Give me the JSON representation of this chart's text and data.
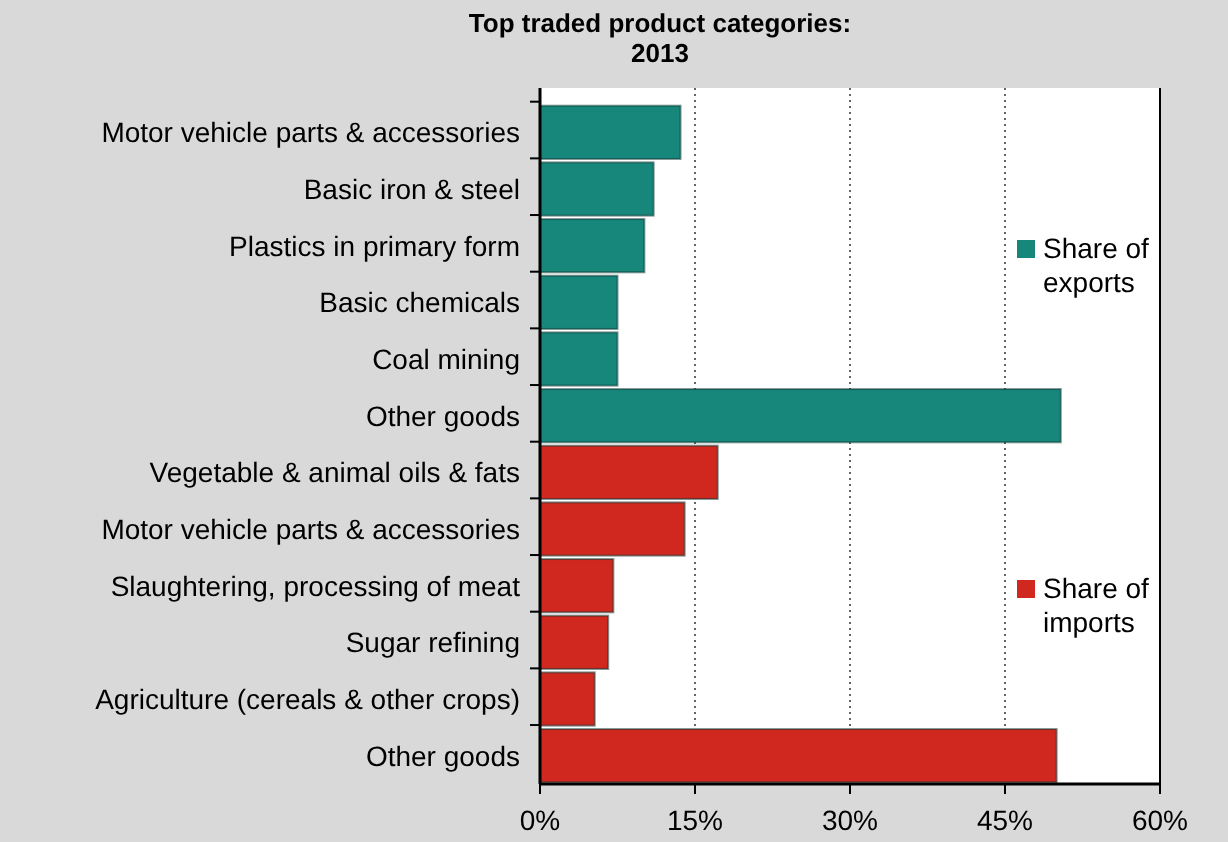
{
  "chart_data": {
    "type": "bar",
    "orientation": "horizontal",
    "title": "Top traded product categories: 2013",
    "categories": [
      "Motor vehicle parts & accessories",
      "Basic iron & steel",
      "Plastics in primary form",
      "Basic chemicals",
      "Coal mining",
      "Other goods",
      "Vegetable & animal oils & fats",
      "Motor vehicle parts & accessories",
      "Slaughtering, processing of meat",
      "Sugar refining",
      "Agriculture (cereals & other crops)",
      "Other goods"
    ],
    "series": [
      {
        "name": "Share of exports",
        "color": "#17877c",
        "values": [
          13.6,
          11.0,
          10.1,
          7.5,
          7.5,
          50.4,
          null,
          null,
          null,
          null,
          null,
          null
        ]
      },
      {
        "name": "Share of imports",
        "color": "#d0281f",
        "values": [
          null,
          null,
          null,
          null,
          null,
          null,
          17.2,
          14.0,
          7.1,
          6.6,
          5.3,
          50.0
        ]
      }
    ],
    "xlim": [
      0,
      60
    ],
    "xticks": [
      {
        "value": 0,
        "label": "0%"
      },
      {
        "value": 15,
        "label": "15%"
      },
      {
        "value": 30,
        "label": "30%"
      },
      {
        "value": 45,
        "label": "45%"
      },
      {
        "value": 60,
        "label": "60%"
      }
    ],
    "grid": "x",
    "legend": "right"
  }
}
